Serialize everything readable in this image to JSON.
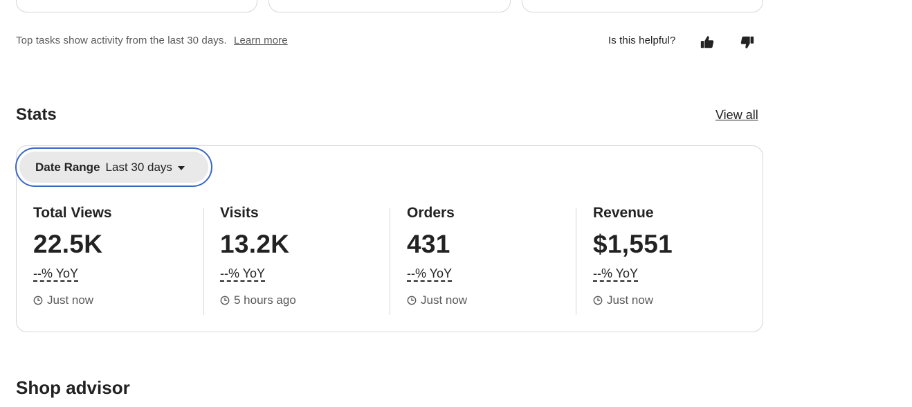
{
  "info": {
    "text": "Top tasks show activity from the last 30 days.",
    "learn_more": "Learn more",
    "helpful_question": "Is this helpful?"
  },
  "stats": {
    "title": "Stats",
    "view_all": "View all",
    "date_range": {
      "label": "Date Range",
      "value": "Last 30 days"
    },
    "metrics": [
      {
        "name": "Total Views",
        "value": "22.5K",
        "yoy": "--% YoY",
        "updated": "Just now"
      },
      {
        "name": "Visits",
        "value": "13.2K",
        "yoy": "--% YoY",
        "updated": "5 hours ago"
      },
      {
        "name": "Orders",
        "value": "431",
        "yoy": "--% YoY",
        "updated": "Just now"
      },
      {
        "name": "Revenue",
        "value": "$1,551",
        "yoy": "--% YoY",
        "updated": "Just now"
      }
    ]
  },
  "shop_advisor": {
    "title": "Shop advisor"
  },
  "icons": {
    "thumbs_up": "thumbs-up-icon",
    "thumbs_down": "thumbs-down-icon",
    "clock": "clock-icon",
    "caret": "caret-down-icon"
  },
  "colors": {
    "focus_ring": "#3b67c7",
    "pill_bg": "#e9e9e9",
    "border": "#d6d6d6",
    "muted_text": "#595959"
  }
}
